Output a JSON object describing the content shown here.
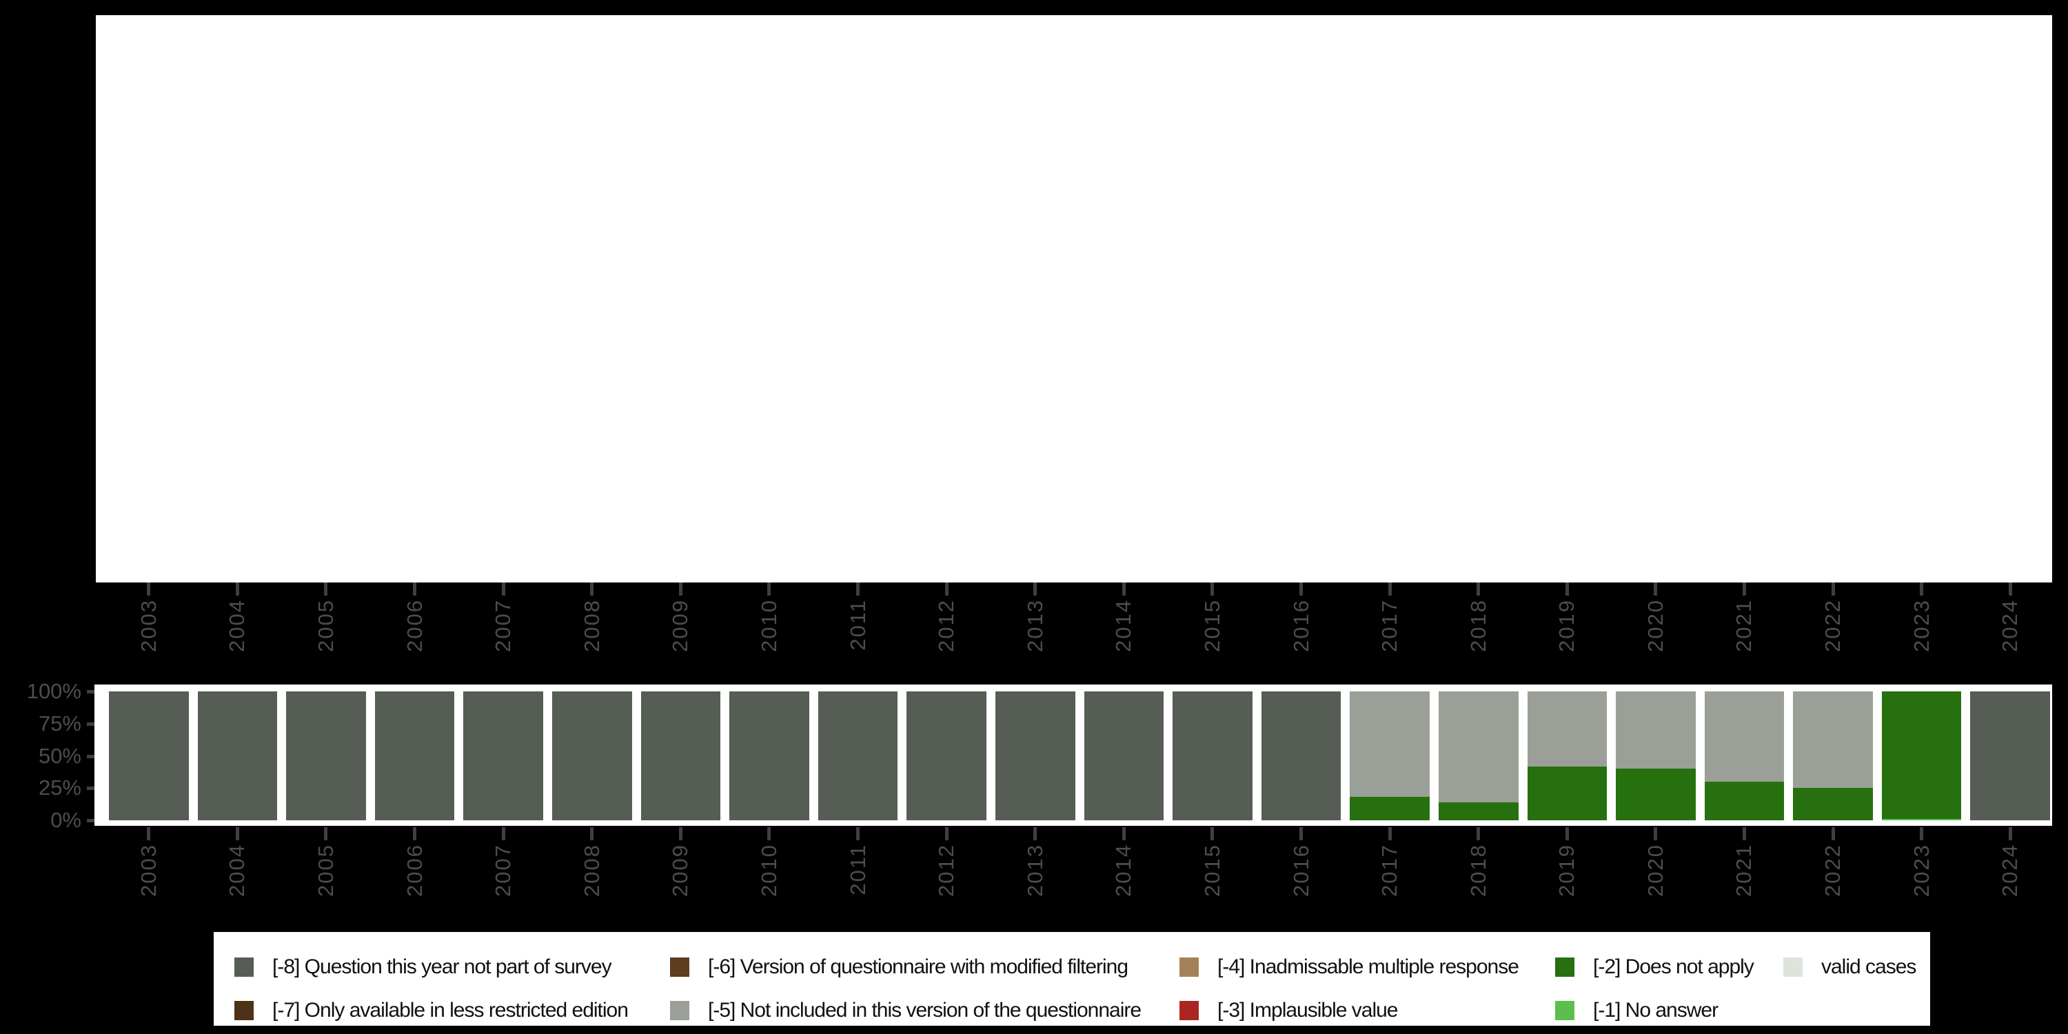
{
  "colors": {
    "background": "#000000",
    "panel": "#ffffff",
    "axis_text": "#4d4d4d",
    "tick": "#3f3f3f",
    "legend_text": "#111111"
  },
  "chart_data": {
    "type": "bar",
    "stacked": true,
    "unit": "percent",
    "title": "",
    "xlabel": "",
    "ylabel": "",
    "ylim": [
      0,
      100
    ],
    "grid": false,
    "legend_position": "bottom",
    "y_tick_labels": [
      "100%",
      "75%",
      "50%",
      "25%",
      "0%"
    ],
    "categories": [
      "2003",
      "2004",
      "2005",
      "2006",
      "2007",
      "2008",
      "2009",
      "2010",
      "2011",
      "2012",
      "2013",
      "2014",
      "2015",
      "2016",
      "2017",
      "2018",
      "2019",
      "2020",
      "2021",
      "2022",
      "2023",
      "2024"
    ],
    "series": [
      {
        "key": "minus-8",
        "name": "[-8] Question this year not part of survey",
        "color": "#565d55",
        "values": [
          100,
          100,
          100,
          100,
          100,
          100,
          100,
          100,
          100,
          100,
          100,
          100,
          100,
          100,
          0,
          0,
          0,
          0,
          0,
          0,
          0,
          100
        ]
      },
      {
        "key": "minus-7",
        "name": "[-7] Only available in less restricted edition",
        "color": "#4f3117",
        "values": [
          0,
          0,
          0,
          0,
          0,
          0,
          0,
          0,
          0,
          0,
          0,
          0,
          0,
          0,
          0,
          0,
          0,
          0,
          0,
          0,
          0,
          0
        ]
      },
      {
        "key": "minus-6",
        "name": "[-6] Version of questionnaire with modified filtering",
        "color": "#5e3c1e",
        "values": [
          0,
          0,
          0,
          0,
          0,
          0,
          0,
          0,
          0,
          0,
          0,
          0,
          0,
          0,
          0,
          0,
          0,
          0,
          0,
          0,
          0,
          0
        ]
      },
      {
        "key": "minus-5",
        "name": "[-5] Not included in this version of the questionnaire",
        "color": "#9aa097",
        "values": [
          0,
          0,
          0,
          0,
          0,
          0,
          0,
          0,
          0,
          0,
          0,
          0,
          0,
          0,
          82,
          86,
          58,
          60,
          70,
          75,
          0,
          0
        ]
      },
      {
        "key": "minus-4",
        "name": "[-4] Inadmissable multiple response",
        "color": "#a5815a",
        "values": [
          0,
          0,
          0,
          0,
          0,
          0,
          0,
          0,
          0,
          0,
          0,
          0,
          0,
          0,
          0,
          0,
          0,
          0,
          0,
          0,
          0,
          0
        ]
      },
      {
        "key": "minus-3",
        "name": "[-3] Implausible value",
        "color": "#ac2621",
        "values": [
          0,
          0,
          0,
          0,
          0,
          0,
          0,
          0,
          0,
          0,
          0,
          0,
          0,
          0,
          0,
          0,
          0,
          0,
          0,
          0,
          0,
          0
        ]
      },
      {
        "key": "minus-2",
        "name": "[-2] Does not apply",
        "color": "#26700f",
        "values": [
          0,
          0,
          0,
          0,
          0,
          0,
          0,
          0,
          0,
          0,
          0,
          0,
          0,
          0,
          18,
          14,
          42,
          40,
          30,
          25,
          99,
          0
        ]
      },
      {
        "key": "minus-1",
        "name": "[-1] No answer",
        "color": "#5cbf4d",
        "values": [
          0,
          0,
          0,
          0,
          0,
          0,
          0,
          0,
          0,
          0,
          0,
          0,
          0,
          0,
          0,
          0,
          0,
          0,
          0,
          0,
          1,
          0
        ]
      },
      {
        "key": "valid-cases",
        "name": "valid cases",
        "color": "#dfe4da",
        "values": [
          0,
          0,
          0,
          0,
          0,
          0,
          0,
          0,
          0,
          0,
          0,
          0,
          0,
          0,
          0,
          0,
          0,
          0,
          0,
          0,
          0,
          0
        ]
      }
    ],
    "stack_order_bottom_to_top": [
      8,
      7,
      6,
      5,
      4,
      3,
      2,
      1,
      0
    ],
    "legend_columns": [
      [
        0,
        1
      ],
      [
        2,
        3
      ],
      [
        4,
        5
      ],
      [
        6,
        7
      ],
      [
        8
      ]
    ]
  }
}
